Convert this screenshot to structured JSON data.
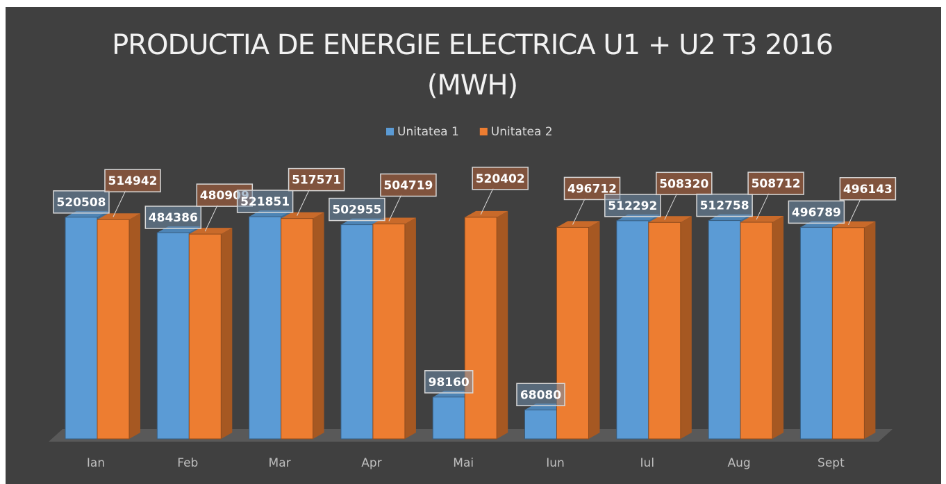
{
  "chart_data": {
    "type": "bar3d",
    "title": "PRODUCTIA DE ENERGIE ELECTRICA U1 + U2 T3 2016 (MWH)",
    "categories": [
      "Ian",
      "Feb",
      "Mar",
      "Apr",
      "Mai",
      "Iun",
      "Iul",
      "Aug",
      "Sept"
    ],
    "series": [
      {
        "name": "Unitatea 1",
        "color": "#5b9bd5",
        "values": [
          520508,
          484386,
          521851,
          502955,
          98160,
          68080,
          512292,
          512758,
          496789
        ]
      },
      {
        "name": "Unitatea 2",
        "color": "#ed7d31",
        "values": [
          514942,
          480909,
          517571,
          504719,
          520402,
          496712,
          508320,
          508712,
          496143
        ]
      }
    ],
    "legend": "top"
  }
}
